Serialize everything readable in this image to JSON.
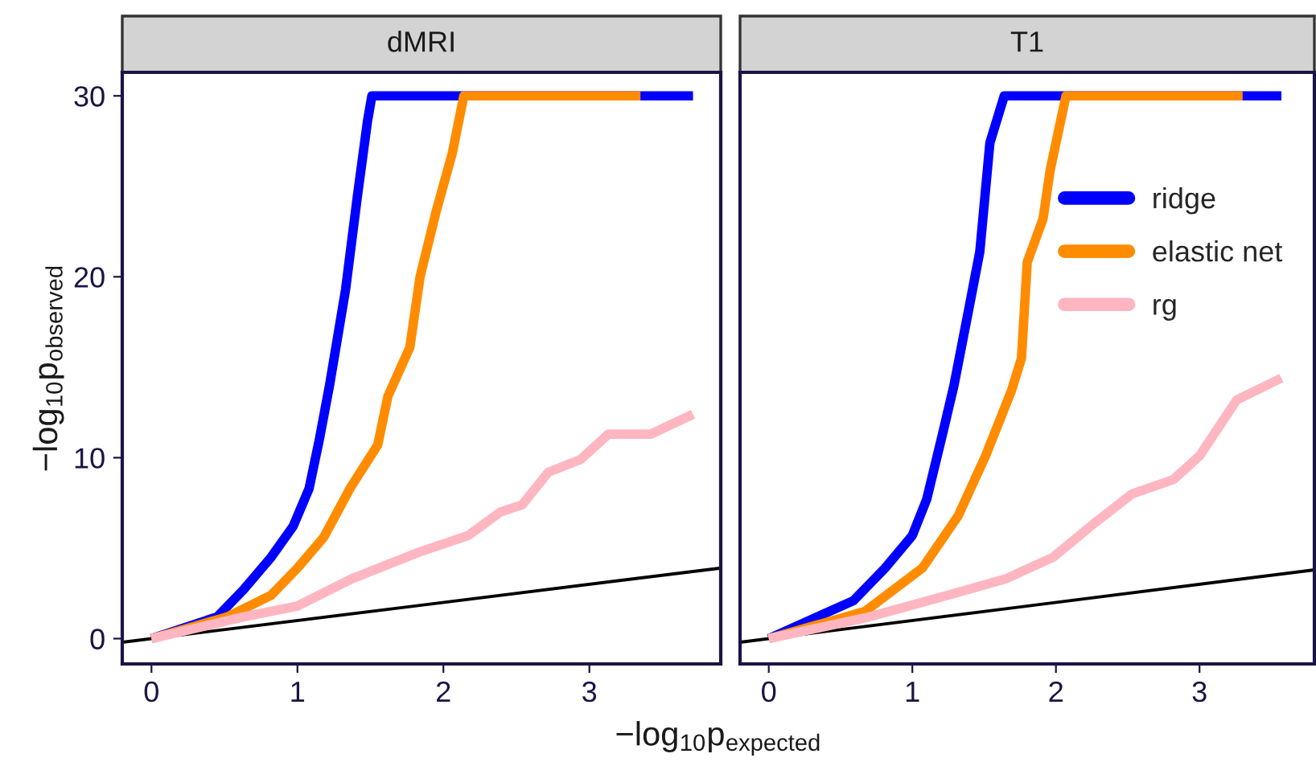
{
  "chart_data": [
    {
      "type": "line",
      "title": "dMRI",
      "xlabel": "−log$_{10}$p$_{expected}$",
      "ylabel": "−log$_{10}$p$_{observed}$",
      "xlim": [
        -0.2,
        3.9
      ],
      "ylim": [
        -1.4,
        31.3
      ],
      "xticks": [
        0,
        1,
        2,
        3
      ],
      "yticks": [
        0,
        10,
        20,
        30
      ],
      "grid": false,
      "line_style": "solid",
      "marker": "none",
      "series": [
        {
          "color": "#0000ff",
          "x": [
            0,
            0.45,
            0.63,
            0.82,
            0.97,
            1.08,
            1.15,
            1.22,
            1.33,
            1.41,
            1.48,
            1.51,
            3.71
          ],
          "values": [
            0,
            1.2,
            2.7,
            4.5,
            6.2,
            8.3,
            11,
            14,
            19.3,
            24.4,
            28.6,
            30,
            30
          ]
        },
        {
          "color": "#ff8c00",
          "x": [
            0,
            0.52,
            0.82,
            1.0,
            1.18,
            1.36,
            1.55,
            1.62,
            1.77,
            1.84,
            1.95,
            2.06,
            2.14,
            3.35
          ],
          "values": [
            0,
            1.2,
            2.4,
            3.9,
            5.6,
            8.3,
            10.7,
            13.4,
            16.1,
            20,
            23.6,
            26.8,
            30,
            30
          ]
        },
        {
          "color": "#ffb6c1",
          "x": [
            0,
            0.63,
            1.0,
            1.37,
            1.84,
            2.17,
            2.39,
            2.54,
            2.72,
            2.94,
            3.13,
            3.42,
            3.71
          ],
          "values": [
            0,
            1.2,
            1.8,
            3.3,
            4.8,
            5.7,
            7.0,
            7.4,
            9.2,
            9.9,
            11.3,
            11.3,
            12.4
          ]
        },
        {
          "color": "#000000",
          "x": [
            -0.2,
            3.9
          ],
          "values": [
            -0.2,
            3.9
          ]
        }
      ]
    },
    {
      "type": "line",
      "title": "T1",
      "xlim": [
        -0.2,
        3.8
      ],
      "ylim": [
        -1.4,
        31.3
      ],
      "xticks": [
        0,
        1,
        2,
        3
      ],
      "yticks": [
        0,
        10,
        20,
        30
      ],
      "tick_labels": "x",
      "grid": false,
      "legend": "right",
      "line_style": "solid",
      "marker": "none",
      "series": [
        {
          "name": "ridge",
          "color": "#0000ff",
          "x": [
            0,
            0.59,
            0.81,
            1.0,
            1.1,
            1.21,
            1.29,
            1.4,
            1.47,
            1.54,
            1.64,
            3.57
          ],
          "values": [
            0,
            2.1,
            3.9,
            5.7,
            7.7,
            11.3,
            14,
            18.5,
            21.4,
            27.4,
            30,
            30
          ]
        },
        {
          "name": "elastic net",
          "color": "#ff8c00",
          "x": [
            0,
            0.67,
            1.07,
            1.32,
            1.51,
            1.69,
            1.76,
            1.8,
            1.91,
            1.96,
            2.07,
            3.3
          ],
          "values": [
            0,
            1.5,
            3.9,
            6.8,
            10.1,
            13.7,
            15.5,
            20.8,
            23.2,
            25.9,
            30,
            30
          ]
        },
        {
          "name": "rg",
          "color": "#ffb6c1",
          "x": [
            0,
            0.7,
            1.25,
            1.65,
            1.98,
            2.24,
            2.53,
            2.82,
            3.0,
            3.26,
            3.57
          ],
          "values": [
            0,
            1.2,
            2.4,
            3.3,
            4.5,
            6.2,
            8.0,
            8.8,
            10.1,
            13.2,
            14.4
          ]
        },
        {
          "color": "#000000",
          "x": [
            -0.2,
            3.8
          ],
          "values": [
            -0.2,
            3.8
          ]
        }
      ]
    }
  ]
}
